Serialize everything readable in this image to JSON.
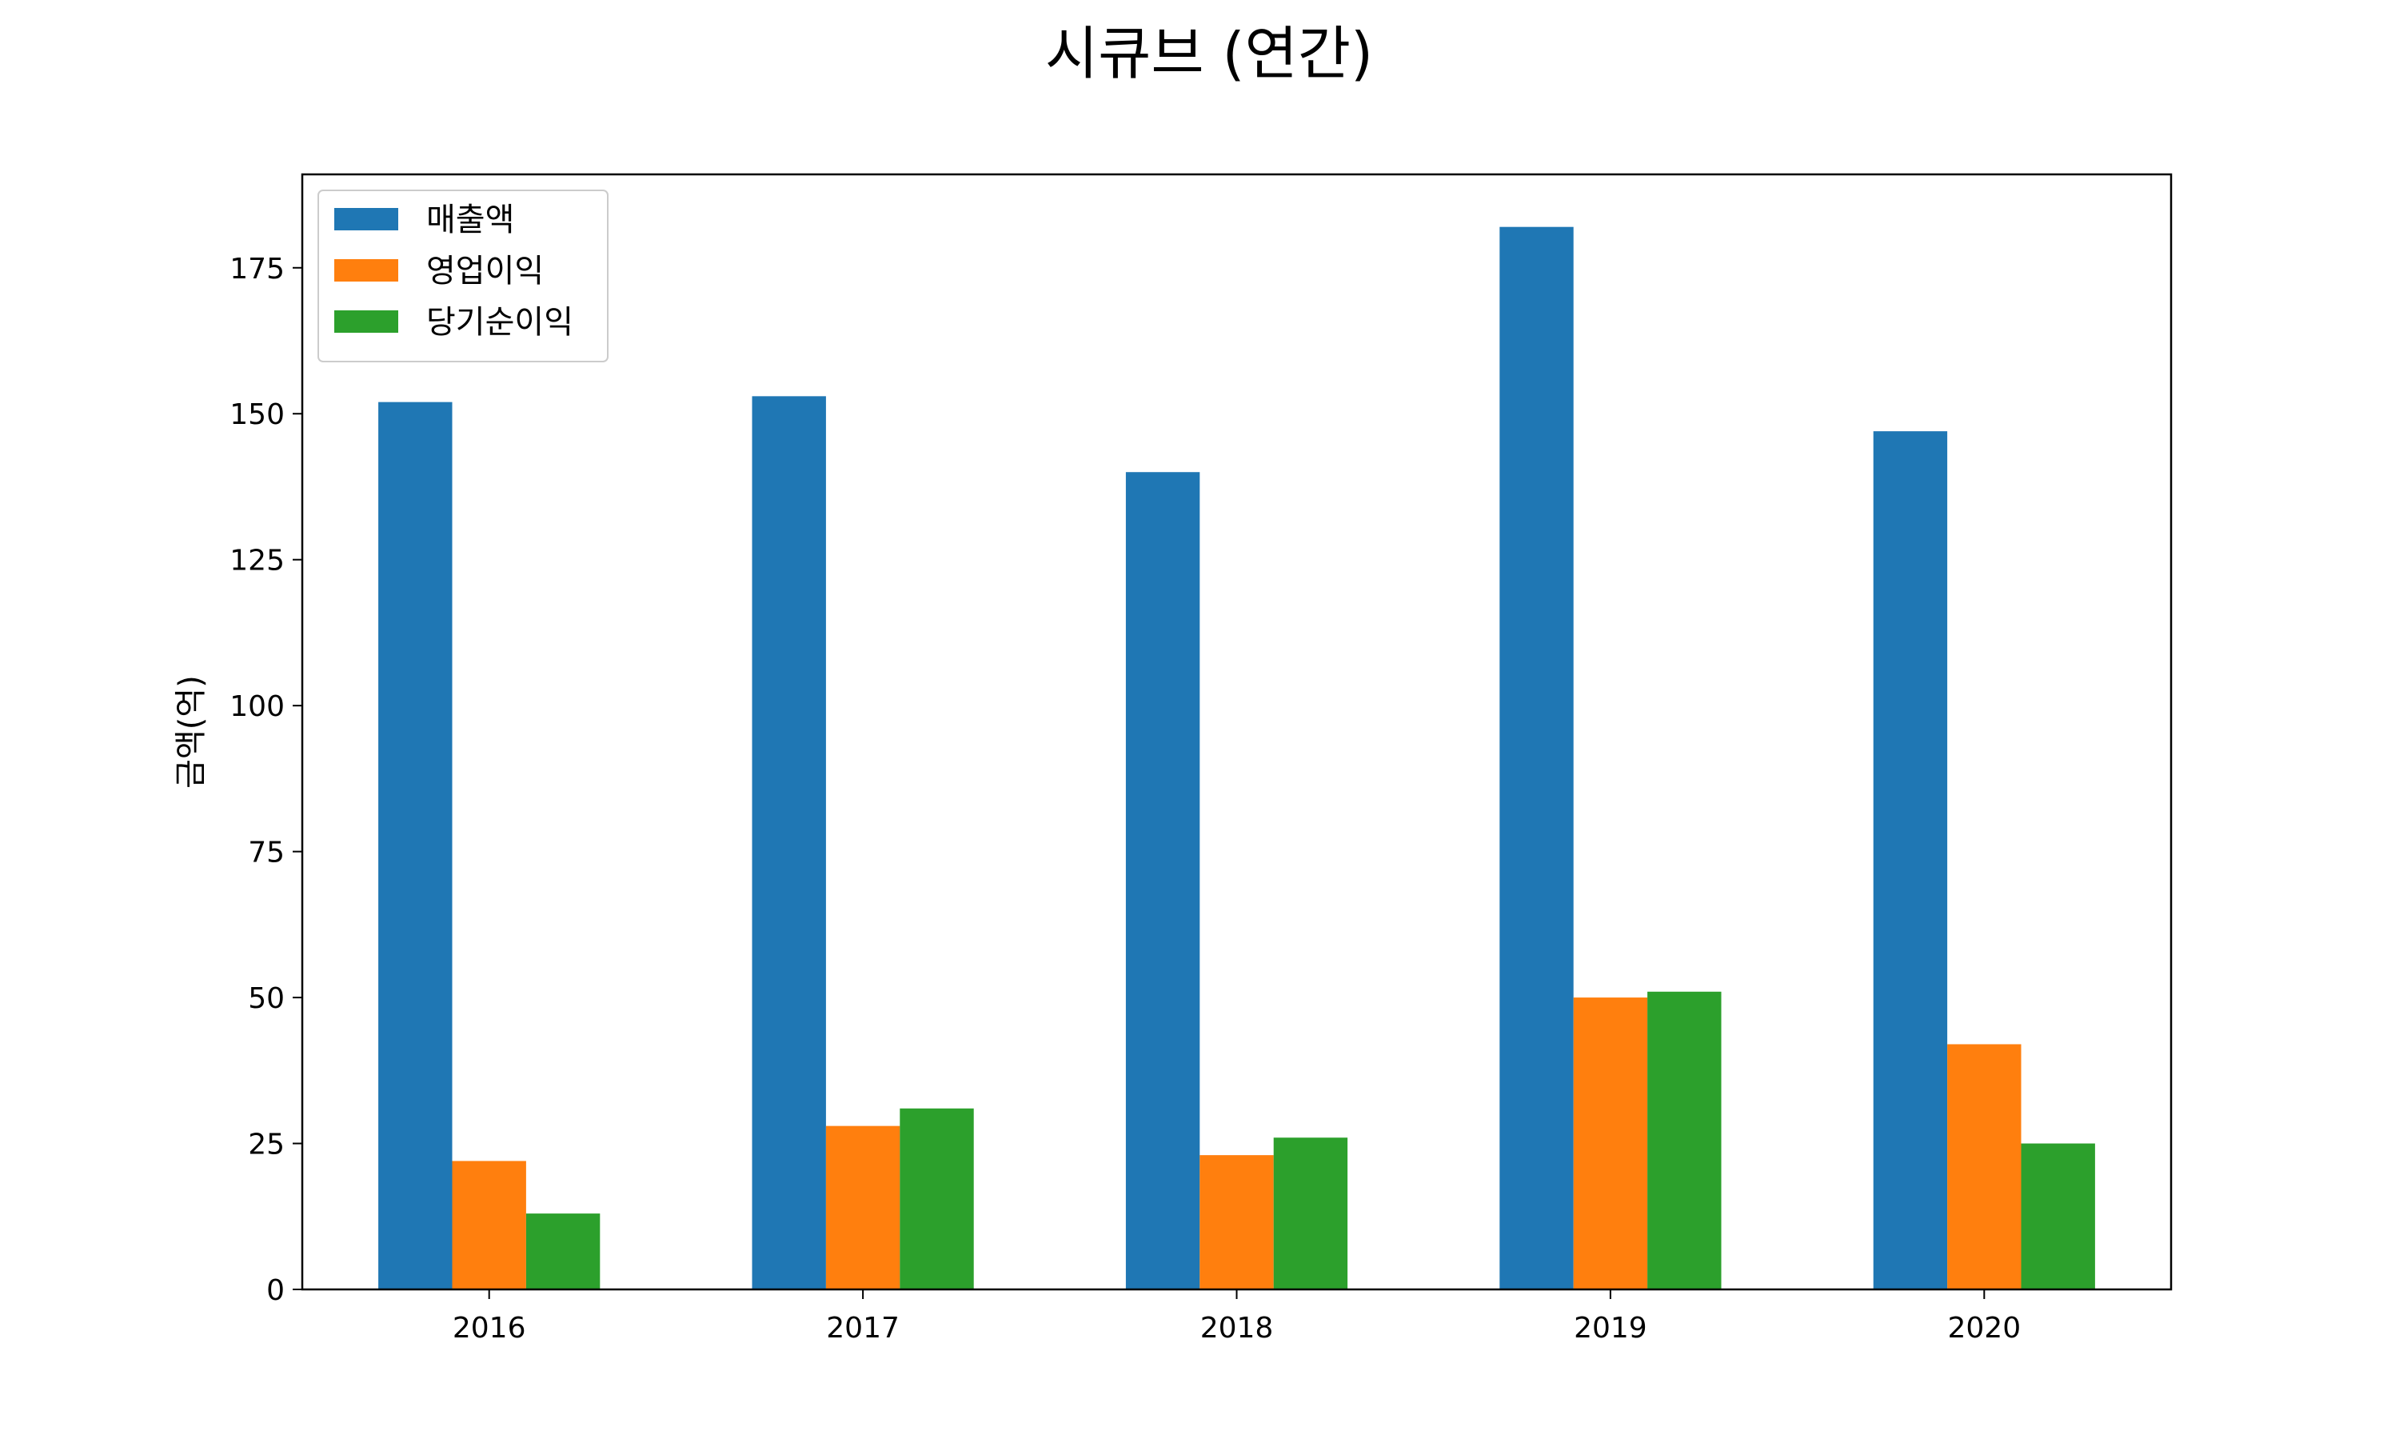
{
  "chart_data": {
    "type": "bar",
    "title": "시큐브 (연간)",
    "xlabel": "",
    "ylabel": "금액(억)",
    "categories": [
      "2016",
      "2017",
      "2018",
      "2019",
      "2020"
    ],
    "series": [
      {
        "name": "매출액",
        "color": "#1f77b4",
        "values": [
          152,
          153,
          140,
          182,
          147
        ]
      },
      {
        "name": "영업이익",
        "color": "#ff7f0e",
        "values": [
          22,
          28,
          23,
          50,
          42
        ]
      },
      {
        "name": "당기순이익",
        "color": "#2ca02c",
        "values": [
          13,
          31,
          26,
          51,
          25
        ]
      }
    ],
    "ylim": [
      0,
      191
    ],
    "yticks": [
      0,
      25,
      50,
      75,
      100,
      125,
      150,
      175
    ],
    "grid": false,
    "legend_position": "top-left"
  }
}
